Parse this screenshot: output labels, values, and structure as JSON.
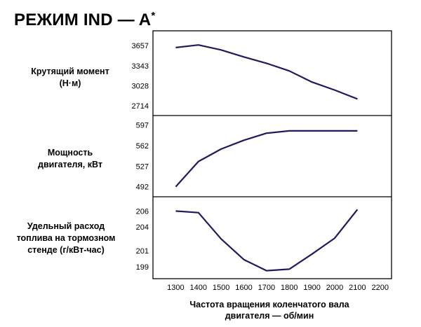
{
  "title": "РЕЖИМ IND — A",
  "title_sup": "*",
  "line_color": "#1f1a5e",
  "chart_data": {
    "type": "line",
    "x_ticks": [
      1300,
      1400,
      1500,
      1600,
      1700,
      1800,
      1900,
      2000,
      2100,
      2200
    ],
    "xlim": [
      1200,
      2250
    ],
    "xlabel": [
      "Частота вращения коленчатого вала",
      "двигателя — об/мин"
    ],
    "panels": [
      {
        "id": "torque",
        "ylabel": [
          "Крутящий момент",
          "(Н·м)"
        ],
        "yticks": [
          2714,
          3028,
          3343,
          3657
        ],
        "ylim": [
          2560,
          3890
        ],
        "x": [
          1300,
          1400,
          1500,
          1600,
          1700,
          1800,
          1900,
          2000,
          2100
        ],
        "y": [
          3627,
          3668,
          3590,
          3480,
          3380,
          3260,
          3085,
          2960,
          2820
        ]
      },
      {
        "id": "power",
        "ylabel": [
          "Мощность",
          "двигателя, кВт"
        ],
        "yticks": [
          492,
          527,
          562,
          597
        ],
        "ylim": [
          475,
          613
        ],
        "x": [
          1300,
          1400,
          1500,
          1600,
          1700,
          1800,
          1900,
          2000,
          2100
        ],
        "y": [
          492,
          535,
          556,
          571,
          583,
          587,
          587,
          587,
          587
        ]
      },
      {
        "id": "sfc",
        "ylabel": [
          "Удельный расход",
          "топлива на тормозном",
          "стенде (г/кВт-час)"
        ],
        "yticks": [
          199,
          201,
          204,
          206
        ],
        "ylim": [
          197.5,
          207.8
        ],
        "x": [
          1300,
          1400,
          1500,
          1600,
          1700,
          1800,
          1900,
          2000,
          2100
        ],
        "y": [
          206.0,
          205.8,
          202.5,
          199.9,
          198.5,
          198.7,
          200.6,
          202.6,
          206.2
        ]
      }
    ]
  }
}
